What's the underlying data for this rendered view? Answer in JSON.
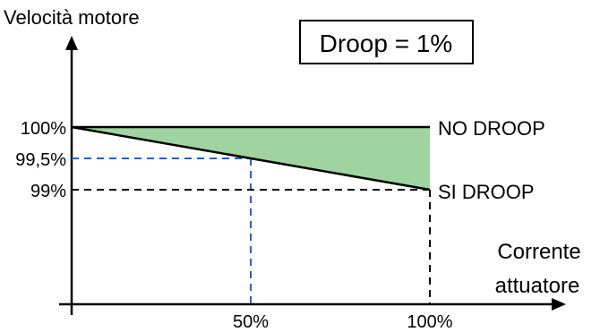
{
  "chart_data": {
    "type": "line",
    "ylabel": "Velocità motore",
    "xlabel_line1": "Corrente",
    "xlabel_line2": "attuatore",
    "title": "Droop = 1%",
    "y_ticks": [
      "100%",
      "99,5%",
      "99%"
    ],
    "x_ticks": [
      "50%",
      "100%"
    ],
    "series": [
      {
        "name": "NO DROOP",
        "points": [
          [
            0,
            100
          ],
          [
            100,
            100
          ]
        ]
      },
      {
        "name": "SI DROOP",
        "points": [
          [
            0,
            100
          ],
          [
            100,
            99
          ]
        ]
      }
    ],
    "marked_point": {
      "x": 50,
      "y": 99.5
    },
    "colors": {
      "fill": "#9fd39f",
      "guide_blue": "#2f5fb5",
      "guide_black": "#000000",
      "axis": "#000000"
    }
  }
}
